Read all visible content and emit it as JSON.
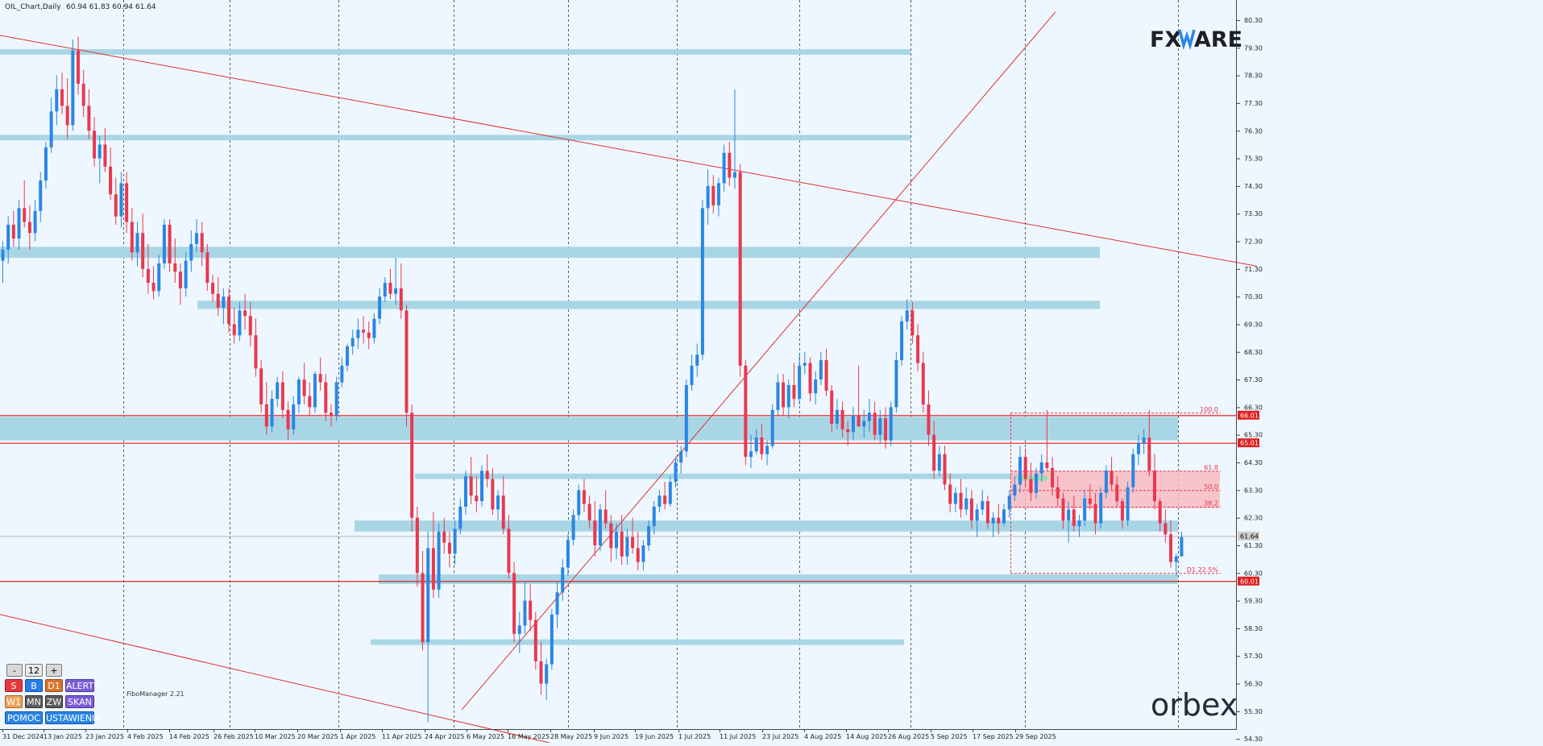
{
  "header": {
    "title": "OIL_Chart,Daily",
    "ohlc": "60.94 61.83 60.94 61.64"
  },
  "brand": {
    "logo_prefix": "FX",
    "logo_suffix": "ARE",
    "bottom_logo": "orbex"
  },
  "chart_data": {
    "type": "candlestick",
    "symbol": "OIL",
    "timeframe": "Daily",
    "ylim": [
      54.0,
      80.6
    ],
    "price_ticks": [
      "80.30",
      "79.30",
      "78.30",
      "77.30",
      "76.30",
      "75.30",
      "74.30",
      "73.30",
      "72.30",
      "71.30",
      "70.30",
      "69.30",
      "68.30",
      "67.30",
      "66.30",
      "65.30",
      "64.30",
      "63.30",
      "62.30",
      "61.30",
      "60.30",
      "59.30",
      "58.30",
      "57.30",
      "56.30",
      "55.30",
      "54.30"
    ],
    "date_labels": [
      "31 Dec 2024",
      "13 Jan 2025",
      "23 Jan 2025",
      "4 Feb 2025",
      "14 Feb 2025",
      "26 Feb 2025",
      "10 Mar 2025",
      "20 Mar 2025",
      "1 Apr 2025",
      "11 Apr 2025",
      "24 Apr 2025",
      "6 May 2025",
      "16 May 2025",
      "28 May 2025",
      "9 Jun 2025",
      "19 Jun 2025",
      "1 Jul 2025",
      "11 Jul 2025",
      "23 Jul 2025",
      "4 Aug 2025",
      "14 Aug 2025",
      "26 Aug 2025",
      "5 Sep 2025",
      "17 Sep 2025",
      "29 Sep 2025"
    ],
    "candles": [
      [
        71.6,
        72.3,
        70.8,
        72.0
      ],
      [
        72.0,
        73.2,
        71.5,
        72.9
      ],
      [
        72.9,
        73.4,
        72.1,
        72.4
      ],
      [
        72.4,
        73.8,
        72.0,
        73.5
      ],
      [
        73.5,
        74.5,
        72.8,
        73.0
      ],
      [
        73.0,
        73.6,
        72.0,
        72.6
      ],
      [
        72.6,
        73.8,
        72.3,
        73.4
      ],
      [
        73.4,
        74.8,
        73.0,
        74.5
      ],
      [
        74.5,
        75.9,
        74.2,
        75.7
      ],
      [
        75.7,
        77.5,
        75.5,
        77.0
      ],
      [
        77.0,
        78.3,
        76.5,
        77.8
      ],
      [
        77.8,
        78.4,
        76.9,
        77.2
      ],
      [
        77.2,
        78.2,
        76.0,
        76.5
      ],
      [
        76.5,
        79.6,
        76.3,
        79.2
      ],
      [
        79.2,
        79.7,
        77.6,
        78.0
      ],
      [
        78.0,
        78.5,
        76.8,
        77.2
      ],
      [
        77.2,
        77.8,
        76.0,
        76.3
      ],
      [
        76.3,
        76.8,
        75.0,
        75.3
      ],
      [
        75.3,
        76.1,
        74.4,
        75.8
      ],
      [
        75.8,
        76.4,
        74.8,
        75.0
      ],
      [
        75.0,
        75.7,
        73.8,
        74.0
      ],
      [
        74.0,
        74.6,
        72.9,
        73.2
      ],
      [
        73.2,
        74.8,
        72.8,
        74.4
      ],
      [
        74.4,
        74.8,
        72.6,
        73.0
      ],
      [
        73.0,
        73.5,
        71.6,
        71.9
      ],
      [
        71.9,
        73.0,
        71.4,
        72.6
      ],
      [
        72.6,
        73.3,
        71.0,
        71.3
      ],
      [
        71.3,
        72.2,
        70.4,
        70.8
      ],
      [
        70.8,
        71.4,
        70.2,
        70.5
      ],
      [
        70.5,
        71.8,
        70.3,
        71.5
      ],
      [
        71.5,
        73.1,
        71.3,
        72.9
      ],
      [
        72.9,
        73.1,
        71.2,
        71.5
      ],
      [
        71.5,
        72.4,
        70.8,
        71.2
      ],
      [
        71.2,
        71.5,
        70.0,
        70.6
      ],
      [
        70.6,
        71.9,
        70.3,
        71.6
      ],
      [
        71.6,
        72.7,
        71.2,
        72.2
      ],
      [
        72.2,
        73.1,
        71.9,
        72.6
      ],
      [
        72.6,
        73.0,
        71.4,
        71.9
      ],
      [
        71.9,
        72.2,
        70.5,
        70.8
      ],
      [
        70.8,
        71.1,
        70.1,
        70.4
      ],
      [
        70.4,
        71.0,
        69.6,
        69.9
      ],
      [
        69.9,
        70.6,
        69.3,
        70.3
      ],
      [
        70.3,
        70.6,
        69.0,
        69.3
      ],
      [
        69.3,
        69.9,
        68.6,
        68.9
      ],
      [
        68.9,
        70.1,
        68.7,
        69.8
      ],
      [
        69.8,
        70.4,
        69.1,
        69.6
      ],
      [
        69.6,
        70.1,
        68.5,
        68.9
      ],
      [
        68.9,
        69.5,
        67.4,
        67.7
      ],
      [
        67.7,
        68.0,
        66.1,
        66.4
      ],
      [
        66.4,
        67.2,
        65.3,
        65.6
      ],
      [
        65.6,
        66.9,
        65.4,
        66.6
      ],
      [
        66.6,
        67.4,
        66.3,
        67.2
      ],
      [
        67.2,
        67.6,
        65.9,
        66.2
      ],
      [
        66.2,
        66.5,
        65.1,
        65.5
      ],
      [
        65.5,
        66.7,
        65.3,
        66.4
      ],
      [
        66.4,
        67.4,
        66.1,
        67.3
      ],
      [
        67.3,
        67.9,
        66.4,
        66.7
      ],
      [
        66.7,
        67.2,
        66.0,
        66.3
      ],
      [
        66.3,
        67.6,
        66.1,
        67.5
      ],
      [
        67.5,
        68.1,
        66.9,
        67.2
      ],
      [
        67.2,
        67.5,
        65.8,
        66.1
      ],
      [
        66.1,
        66.4,
        65.6,
        66.0
      ],
      [
        66.0,
        67.4,
        65.8,
        67.2
      ],
      [
        67.2,
        68.1,
        67.0,
        67.8
      ],
      [
        67.8,
        68.6,
        67.6,
        68.5
      ],
      [
        68.5,
        69.1,
        68.2,
        68.8
      ],
      [
        68.8,
        69.5,
        68.4,
        69.1
      ],
      [
        69.1,
        69.6,
        68.6,
        69.0
      ],
      [
        69.0,
        69.4,
        68.4,
        68.8
      ],
      [
        68.8,
        69.7,
        68.6,
        69.5
      ],
      [
        69.5,
        70.6,
        69.3,
        70.3
      ],
      [
        70.3,
        71.0,
        70.1,
        70.8
      ],
      [
        70.8,
        71.3,
        70.2,
        70.4
      ],
      [
        70.4,
        71.7,
        70.0,
        70.6
      ],
      [
        70.6,
        71.5,
        69.5,
        69.8
      ],
      [
        69.8,
        70.0,
        65.6,
        66.1
      ],
      [
        66.1,
        66.4,
        61.8,
        62.3
      ],
      [
        62.3,
        62.7,
        59.8,
        60.3
      ],
      [
        60.3,
        61.1,
        57.5,
        57.8
      ],
      [
        57.8,
        61.8,
        54.9,
        61.2
      ],
      [
        61.2,
        62.5,
        59.4,
        59.7
      ],
      [
        59.7,
        62.1,
        59.4,
        61.8
      ],
      [
        61.8,
        62.3,
        61.0,
        61.4
      ],
      [
        61.4,
        61.8,
        60.5,
        61.0
      ],
      [
        61.0,
        62.2,
        60.6,
        61.9
      ],
      [
        61.9,
        63.0,
        61.7,
        62.7
      ],
      [
        62.7,
        64.0,
        62.4,
        63.8
      ],
      [
        63.8,
        64.5,
        62.8,
        63.1
      ],
      [
        63.1,
        63.8,
        62.5,
        62.9
      ],
      [
        62.9,
        64.2,
        62.7,
        64.0
      ],
      [
        64.0,
        64.6,
        63.4,
        63.7
      ],
      [
        63.7,
        64.1,
        62.4,
        62.6
      ],
      [
        62.6,
        63.3,
        62.2,
        63.1
      ],
      [
        63.1,
        63.8,
        61.7,
        61.9
      ],
      [
        61.9,
        62.4,
        60.1,
        60.3
      ],
      [
        60.3,
        60.7,
        57.8,
        58.1
      ],
      [
        58.1,
        58.9,
        57.4,
        58.4
      ],
      [
        58.4,
        60.0,
        58.1,
        59.3
      ],
      [
        59.3,
        59.9,
        58.2,
        58.6
      ],
      [
        58.6,
        58.9,
        56.8,
        57.1
      ],
      [
        57.1,
        57.8,
        55.9,
        56.3
      ],
      [
        56.3,
        57.2,
        55.7,
        57.0
      ],
      [
        57.0,
        59.0,
        56.8,
        58.8
      ],
      [
        58.8,
        60.0,
        58.3,
        59.6
      ],
      [
        59.6,
        60.8,
        59.3,
        60.5
      ],
      [
        60.5,
        61.7,
        60.2,
        61.5
      ],
      [
        61.5,
        62.6,
        61.3,
        62.4
      ],
      [
        62.4,
        63.5,
        62.2,
        63.3
      ],
      [
        63.3,
        63.7,
        62.5,
        62.8
      ],
      [
        62.8,
        63.1,
        61.9,
        62.2
      ],
      [
        62.2,
        62.9,
        60.9,
        61.3
      ],
      [
        61.3,
        62.8,
        61.1,
        62.6
      ],
      [
        62.6,
        63.3,
        61.9,
        62.1
      ],
      [
        62.1,
        62.4,
        60.7,
        61.2
      ],
      [
        61.2,
        62.1,
        60.8,
        61.8
      ],
      [
        61.8,
        62.4,
        60.6,
        60.9
      ],
      [
        60.9,
        61.9,
        60.6,
        61.6
      ],
      [
        61.6,
        62.3,
        61.0,
        61.2
      ],
      [
        61.2,
        61.8,
        60.4,
        60.7
      ],
      [
        60.7,
        61.5,
        60.4,
        61.3
      ],
      [
        61.3,
        62.2,
        61.1,
        62.0
      ],
      [
        62.0,
        62.9,
        61.7,
        62.7
      ],
      [
        62.7,
        63.3,
        62.5,
        63.1
      ],
      [
        63.1,
        63.6,
        62.6,
        62.8
      ],
      [
        62.8,
        63.8,
        62.7,
        63.6
      ],
      [
        63.6,
        64.5,
        63.4,
        64.3
      ],
      [
        64.3,
        64.9,
        63.9,
        64.7
      ],
      [
        64.7,
        67.3,
        64.5,
        67.1
      ],
      [
        67.1,
        68.2,
        66.9,
        67.8
      ],
      [
        67.8,
        68.6,
        67.4,
        68.2
      ],
      [
        68.2,
        73.8,
        68.0,
        73.5
      ],
      [
        73.5,
        74.9,
        72.9,
        74.3
      ],
      [
        74.3,
        74.7,
        73.3,
        73.6
      ],
      [
        73.6,
        74.6,
        73.2,
        74.4
      ],
      [
        74.4,
        75.8,
        74.1,
        75.5
      ],
      [
        75.5,
        75.9,
        74.3,
        74.6
      ],
      [
        74.6,
        77.8,
        74.2,
        74.8
      ],
      [
        74.8,
        75.1,
        67.4,
        67.8
      ],
      [
        67.8,
        68.0,
        64.2,
        64.5
      ],
      [
        64.5,
        65.3,
        64.1,
        64.7
      ],
      [
        64.7,
        65.5,
        64.6,
        65.2
      ],
      [
        65.2,
        65.7,
        64.4,
        64.6
      ],
      [
        64.6,
        65.1,
        64.2,
        64.9
      ],
      [
        64.9,
        66.4,
        64.8,
        66.2
      ],
      [
        66.2,
        67.5,
        66.0,
        67.2
      ],
      [
        67.2,
        67.5,
        66.0,
        66.3
      ],
      [
        66.3,
        67.3,
        65.9,
        67.1
      ],
      [
        67.1,
        67.9,
        66.3,
        66.6
      ],
      [
        66.6,
        68.2,
        66.4,
        67.8
      ],
      [
        67.8,
        68.3,
        67.5,
        67.9
      ],
      [
        67.9,
        68.1,
        66.5,
        66.8
      ],
      [
        66.8,
        67.6,
        66.4,
        67.3
      ],
      [
        67.3,
        68.3,
        67.1,
        68.0
      ],
      [
        68.0,
        68.4,
        66.7,
        66.9
      ],
      [
        66.9,
        67.1,
        65.4,
        65.7
      ],
      [
        65.7,
        66.6,
        65.5,
        66.2
      ],
      [
        66.2,
        66.5,
        65.2,
        65.5
      ],
      [
        65.5,
        65.8,
        64.9,
        65.4
      ],
      [
        65.4,
        66.3,
        65.1,
        66.0
      ],
      [
        66.0,
        67.8,
        65.8,
        65.6
      ],
      [
        65.6,
        66.2,
        65.2,
        65.8
      ],
      [
        65.8,
        66.6,
        65.4,
        66.1
      ],
      [
        66.1,
        66.5,
        65.1,
        65.3
      ],
      [
        65.3,
        66.2,
        65.0,
        65.9
      ],
      [
        65.9,
        66.3,
        64.8,
        65.1
      ],
      [
        65.1,
        66.5,
        64.9,
        66.3
      ],
      [
        66.3,
        68.3,
        66.1,
        68.0
      ],
      [
        68.0,
        69.6,
        67.8,
        69.4
      ],
      [
        69.4,
        70.2,
        69.1,
        69.8
      ],
      [
        69.8,
        70.1,
        68.6,
        68.9
      ],
      [
        68.9,
        69.3,
        67.6,
        67.9
      ],
      [
        67.9,
        68.3,
        66.1,
        66.4
      ],
      [
        66.4,
        66.9,
        64.9,
        65.3
      ],
      [
        65.3,
        65.8,
        63.7,
        64.0
      ],
      [
        64.0,
        64.9,
        63.8,
        64.6
      ],
      [
        64.6,
        64.9,
        63.3,
        63.5
      ],
      [
        63.5,
        63.9,
        62.5,
        62.8
      ],
      [
        62.8,
        63.4,
        62.5,
        63.2
      ],
      [
        63.2,
        63.7,
        62.3,
        62.6
      ],
      [
        62.6,
        63.4,
        62.4,
        63.0
      ],
      [
        63.0,
        63.3,
        61.9,
        62.2
      ],
      [
        62.2,
        62.8,
        61.6,
        62.6
      ],
      [
        62.6,
        63.3,
        62.4,
        62.9
      ],
      [
        62.9,
        63.1,
        61.9,
        62.1
      ],
      [
        62.1,
        62.5,
        61.6,
        62.3
      ],
      [
        62.3,
        62.8,
        61.7,
        62.1
      ],
      [
        62.1,
        62.8,
        62.0,
        62.6
      ],
      [
        62.6,
        63.3,
        62.3,
        63.1
      ],
      [
        63.1,
        63.8,
        62.9,
        63.5
      ],
      [
        63.5,
        64.9,
        63.2,
        64.5
      ],
      [
        64.5,
        64.8,
        63.4,
        63.7
      ],
      [
        63.7,
        64.3,
        62.9,
        63.2
      ],
      [
        63.2,
        64.1,
        63.0,
        63.9
      ],
      [
        63.9,
        64.6,
        63.6,
        64.3
      ],
      [
        64.3,
        66.2,
        64.0,
        64.1
      ],
      [
        64.1,
        64.5,
        63.1,
        63.4
      ],
      [
        63.4,
        63.8,
        62.7,
        63.0
      ],
      [
        63.0,
        63.2,
        61.9,
        62.2
      ],
      [
        62.2,
        62.9,
        61.4,
        62.6
      ],
      [
        62.6,
        63.1,
        61.8,
        62.0
      ],
      [
        62.0,
        62.4,
        61.6,
        62.2
      ],
      [
        62.2,
        63.3,
        62.0,
        63.0
      ],
      [
        63.0,
        63.5,
        62.6,
        62.8
      ],
      [
        62.8,
        63.2,
        61.7,
        62.1
      ],
      [
        62.1,
        63.4,
        61.9,
        63.2
      ],
      [
        63.2,
        64.2,
        63.0,
        64.0
      ],
      [
        64.0,
        64.5,
        63.3,
        63.5
      ],
      [
        63.5,
        63.8,
        62.7,
        62.9
      ],
      [
        62.9,
        63.0,
        61.9,
        62.2
      ],
      [
        62.2,
        63.6,
        62.0,
        63.4
      ],
      [
        63.4,
        64.8,
        63.2,
        64.6
      ],
      [
        64.6,
        65.3,
        64.2,
        65.0
      ],
      [
        65.0,
        65.5,
        64.6,
        65.2
      ],
      [
        65.2,
        66.2,
        63.8,
        64.0
      ],
      [
        64.0,
        64.6,
        62.6,
        62.9
      ],
      [
        62.9,
        63.0,
        61.8,
        62.1
      ],
      [
        62.1,
        62.6,
        61.4,
        61.7
      ],
      [
        61.7,
        62.2,
        60.5,
        60.7
      ],
      [
        60.7,
        61.0,
        60.2,
        60.9
      ],
      [
        60.9,
        61.8,
        60.9,
        61.6
      ]
    ],
    "horizontal_lines": [
      {
        "price": 66.01,
        "label": "66.01"
      },
      {
        "price": 65.01,
        "label": "65.01"
      },
      {
        "price": 60.01,
        "label": "60.01"
      }
    ],
    "current_price": {
      "price": 61.64,
      "label": "61.64"
    },
    "fibo_levels": [
      {
        "price": 66.1,
        "label": "100.0"
      },
      {
        "price": 64.0,
        "label": "61.8"
      },
      {
        "price": 63.3,
        "label": "50.0"
      },
      {
        "price": 62.7,
        "label": "38.2"
      },
      {
        "price": 60.3,
        "label": "D1 22.5%"
      }
    ],
    "support_resistance_zones": [
      [
        79.05,
        79.25
      ],
      [
        75.95,
        76.15
      ],
      [
        71.7,
        72.1
      ],
      [
        69.85,
        70.15
      ],
      [
        65.1,
        65.95
      ],
      [
        63.7,
        63.9
      ],
      [
        61.8,
        62.2
      ],
      [
        59.9,
        60.25
      ],
      [
        57.7,
        57.9
      ]
    ],
    "trendlines": [
      {
        "from": [
          0,
          79.75
        ],
        "to": [
          1560,
          71.4
        ]
      },
      {
        "from": [
          0,
          58.8
        ],
        "to": [
          720,
          53.9
        ]
      },
      {
        "from": [
          573,
          55.35
        ],
        "to": [
          1310,
          80.6
        ]
      }
    ]
  },
  "controls": {
    "minus": "-",
    "period": "12",
    "plus": "+",
    "sell": "S",
    "buy": "B",
    "d1": "D1",
    "alerts": "ALERTY",
    "w1": "W1",
    "mn": "MN",
    "zw": "ZW",
    "scan": "SKAN",
    "help": "POMOC",
    "settings": "USTAWIENIA"
  },
  "footer_label": "FiboManager 2.21",
  "colors": {
    "background": "#eef7ff",
    "bull": "#2a86e4",
    "bear": "#e8384f",
    "zone": "#a9d6e5",
    "trend": "#e03030",
    "pink_zone": "#f7b7bd",
    "green_zone": "#8fe0a8"
  }
}
